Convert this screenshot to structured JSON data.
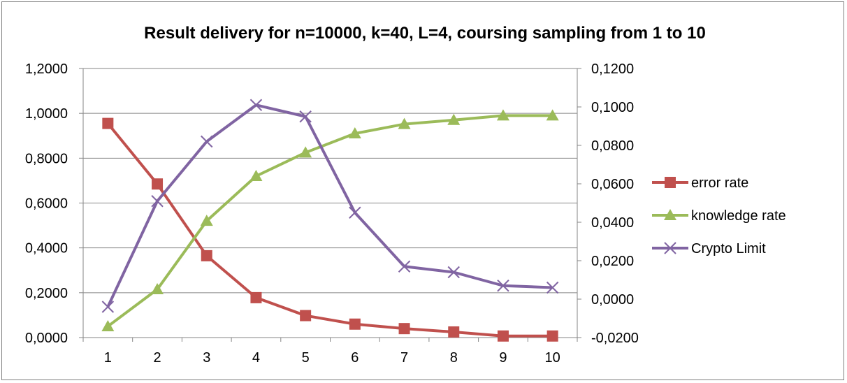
{
  "chart_data": {
    "type": "line",
    "title": "Result delivery for n=10000, k=40, L=4, coursing sampling from 1 to 10",
    "xlabel": "",
    "ylabel": "",
    "categories": [
      "1",
      "2",
      "3",
      "4",
      "5",
      "6",
      "7",
      "8",
      "9",
      "10"
    ],
    "y_left": {
      "ylim": [
        0,
        1.2
      ],
      "ticks": [
        0,
        0.2,
        0.4,
        0.6,
        0.8,
        1.0,
        1.2
      ],
      "tick_labels": [
        "0,0000",
        "0,2000",
        "0,4000",
        "0,6000",
        "0,8000",
        "1,0000",
        "1,2000"
      ]
    },
    "y_right": {
      "ylim": [
        -0.02,
        0.12
      ],
      "ticks": [
        -0.02,
        0,
        0.02,
        0.04,
        0.06,
        0.08,
        0.1,
        0.12
      ],
      "tick_labels": [
        "-0,0200",
        "0,0000",
        "0,0200",
        "0,0400",
        "0,0600",
        "0,0800",
        "0,1000",
        "0,1200"
      ]
    },
    "grid": "horizontal",
    "legend_position": "right",
    "series": [
      {
        "name": "error rate",
        "axis": "left",
        "marker": "square",
        "color": "#c0504d",
        "values": [
          0.955,
          0.685,
          0.365,
          0.178,
          0.098,
          0.06,
          0.04,
          0.025,
          0.007,
          0.007
        ]
      },
      {
        "name": "knowledge rate",
        "axis": "left",
        "marker": "triangle",
        "color": "#9bbb59",
        "values": [
          0.05,
          0.215,
          0.52,
          0.72,
          0.825,
          0.91,
          0.952,
          0.97,
          0.99,
          0.99
        ]
      },
      {
        "name": "Crypto Limit",
        "axis": "right",
        "marker": "x",
        "color": "#8064a2",
        "values": [
          -0.004,
          0.051,
          0.082,
          0.101,
          0.095,
          0.045,
          0.017,
          0.014,
          0.007,
          0.006
        ]
      }
    ]
  }
}
